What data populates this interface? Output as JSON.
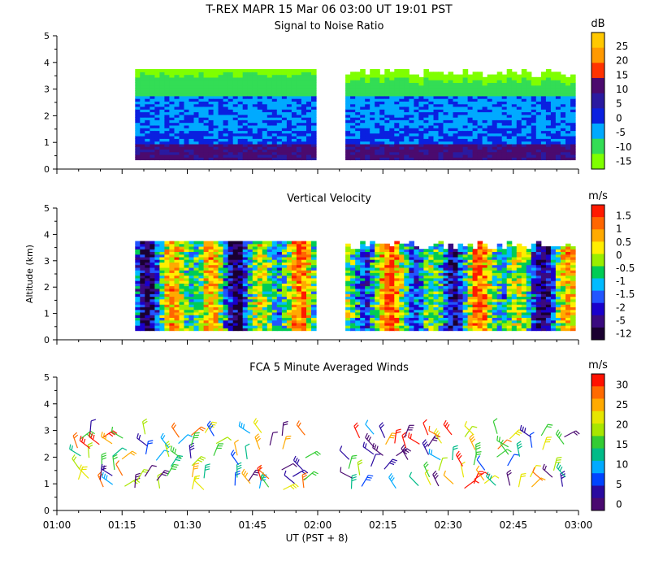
{
  "header": {
    "title": "T-REX   MAPR 15 Mar 06   03:00 UT   19:01   PST"
  },
  "x_axis": {
    "label": "UT  (PST + 8)",
    "ticks": [
      "01:00",
      "01:15",
      "01:30",
      "01:45",
      "02:00",
      "02:15",
      "02:30",
      "02:45",
      "03:00"
    ]
  },
  "colors": {
    "scale": [
      "#7fff00",
      "#33dd33",
      "#00bb77",
      "#00aaff",
      "#0033ff",
      "#2a1aa0",
      "#4a0a70",
      "#ff2200",
      "#ff7700",
      "#ffdd00"
    ]
  },
  "chart_data": [
    {
      "type": "heatmap",
      "title": "Signal to Noise Ratio",
      "ylabel": "",
      "units": "dB",
      "xlim": [
        "01:00",
        "03:00"
      ],
      "ylim": [
        0,
        5
      ],
      "yticks": [
        "0",
        "1",
        "2",
        "3",
        "4",
        "5"
      ],
      "data_gap": [
        "01:59",
        "02:06"
      ],
      "colorbar": {
        "labels": [
          "25",
          "20",
          "15",
          "10",
          "5",
          "0",
          "-5",
          "-10",
          "-15"
        ],
        "colors": [
          "#ffc800",
          "#ff9900",
          "#ff3300",
          "#4b0a6e",
          "#2a1aa0",
          "#0a20e0",
          "#00aaff",
          "#33dd55",
          "#7fff00"
        ]
      },
      "profile_description_by_altitude_km": [
        {
          "alt": [
            0.35,
            1.0
          ],
          "value_dB": 12
        },
        {
          "alt": [
            1.0,
            1.6
          ],
          "value_dB": 5
        },
        {
          "alt": [
            1.6,
            2.8
          ],
          "value_dB": -5
        },
        {
          "alt": [
            2.8,
            3.6
          ],
          "value_dB": -10
        },
        {
          "alt": [
            3.6,
            3.8
          ],
          "value_dB": -15
        }
      ]
    },
    {
      "type": "heatmap",
      "title": "Vertical Velocity",
      "ylabel": "Altitude (km)",
      "units": "m/s",
      "xlim": [
        "01:00",
        "03:00"
      ],
      "ylim": [
        0,
        5
      ],
      "yticks": [
        "0",
        "1",
        "2",
        "3",
        "4",
        "5"
      ],
      "data_gap": [
        "01:59",
        "02:06"
      ],
      "colorbar": {
        "labels": [
          "1.5",
          "1",
          "0.5",
          "0",
          "-0.5",
          "-1",
          "-1.5",
          "-2",
          "-5",
          "-12"
        ],
        "colors": [
          "#ff1a00",
          "#ff6600",
          "#ffaa00",
          "#ffee00",
          "#99ee00",
          "#00cc55",
          "#00bbff",
          "#2255ff",
          "#1a00cc",
          "#3a0a80",
          "#1a0030"
        ]
      }
    },
    {
      "type": "scatter",
      "title": "FCA 5 Minute Averaged Winds",
      "ylabel": "",
      "units": "m/s",
      "xlim": [
        "01:00",
        "03:00"
      ],
      "ylim": [
        0,
        5
      ],
      "yticks": [
        "0",
        "1",
        "2",
        "3",
        "4",
        "5"
      ],
      "colorbar": {
        "labels": [
          "30",
          "25",
          "20",
          "15",
          "10",
          "5",
          "0"
        ],
        "colors": [
          "#ff1100",
          "#ff6a00",
          "#ffaa00",
          "#e6e600",
          "#a8e600",
          "#33cc33",
          "#00bb88",
          "#00aaff",
          "#0044ff",
          "#2a0aa0",
          "#4a0a70"
        ]
      },
      "barb_rows_km": [
        0.9,
        1.2,
        1.6,
        2.0,
        2.4,
        2.8
      ]
    }
  ]
}
